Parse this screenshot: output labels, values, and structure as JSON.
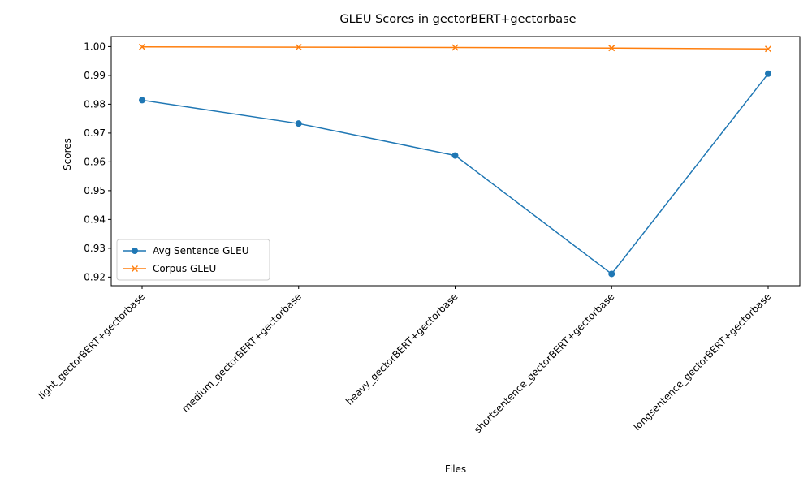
{
  "chart_data": {
    "type": "line",
    "title": "GLEU Scores in gectorBERT+gectorbase",
    "xlabel": "Files",
    "ylabel": "Scores",
    "categories": [
      "light_gectorBERT+gectorbase",
      "medium_gectorBERT+gectorbase",
      "heavy_gectorBERT+gectorbase",
      "shortsentence_gectorBERT+gectorbase",
      "longsentence_gectorBERT+gectorbase"
    ],
    "ylim": [
      0.917,
      1.0035
    ],
    "yticks": [
      "0.92",
      "0.93",
      "0.94",
      "0.95",
      "0.96",
      "0.97",
      "0.98",
      "0.99",
      "1.00"
    ],
    "grid": false,
    "legend_position": "lower-left",
    "series": [
      {
        "name": "Avg Sentence GLEU",
        "marker": "circle",
        "color": "#1f77b4",
        "values": [
          0.9814,
          0.9733,
          0.9622,
          0.9211,
          0.9906
        ]
      },
      {
        "name": "Corpus GLEU",
        "marker": "x",
        "color": "#ff7f0e",
        "values": [
          0.9999,
          0.9998,
          0.9997,
          0.9995,
          0.9992
        ]
      }
    ]
  }
}
